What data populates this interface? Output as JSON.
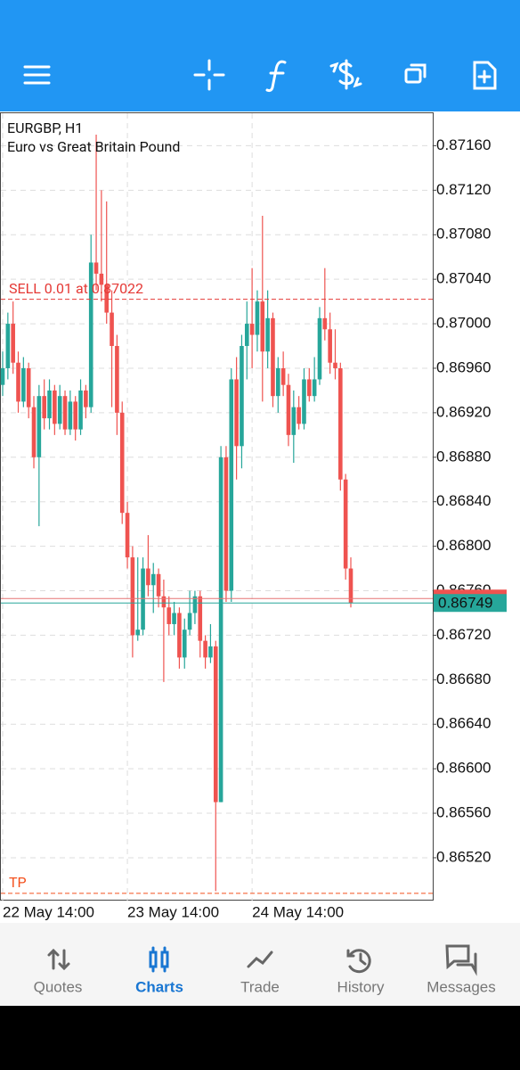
{
  "chart_data": {
    "type": "candlestick",
    "symbol": "EURGBP, H1",
    "description": "Euro vs Great Britain Pound",
    "categories": [
      "22 May 14:00",
      null,
      null,
      null,
      null,
      null,
      null,
      null,
      null,
      null,
      null,
      null,
      null,
      null,
      null,
      null,
      null,
      null,
      null,
      null,
      null,
      null,
      null,
      null,
      "23 May 14:00",
      null,
      null,
      null,
      null,
      null,
      null,
      null,
      null,
      null,
      null,
      null,
      null,
      null,
      null,
      null,
      null,
      null,
      null,
      null,
      null,
      null,
      null,
      null,
      "24 May 14:00",
      null,
      null,
      null,
      null,
      null,
      null,
      null,
      null,
      null,
      null,
      null,
      null,
      null,
      null,
      null,
      null,
      null,
      null,
      null
    ],
    "open": [
      0.86945,
      0.8696,
      0.87,
      0.86965,
      0.8693,
      0.8696,
      0.86925,
      0.8688,
      0.86935,
      0.86915,
      0.8694,
      0.8691,
      0.86935,
      0.86905,
      0.8693,
      0.86905,
      0.8694,
      0.86925,
      0.87055,
      0.87045,
      0.87035,
      0.8701,
      0.8698,
      0.8692,
      0.8683,
      0.8679,
      0.8672,
      0.86725,
      0.8678,
      0.86765,
      0.86775,
      0.86755,
      0.86745,
      0.8673,
      0.8674,
      0.867,
      0.86725,
      0.8674,
      0.86755,
      0.86715,
      0.867,
      0.8671,
      0.8657,
      0.8688,
      0.8676,
      0.8695,
      0.8689,
      0.8698,
      0.87,
      0.8699,
      0.8702,
      0.86975,
      0.87005,
      0.86935,
      0.8696,
      0.86945,
      0.869,
      0.86925,
      0.8691,
      0.8695,
      0.86935,
      0.8695,
      0.87005,
      0.86995,
      0.86965,
      0.8696,
      0.8686,
      0.8678
    ],
    "high": [
      0.86975,
      0.8701,
      0.8702,
      0.86975,
      0.8697,
      0.86965,
      0.86935,
      0.86945,
      0.8695,
      0.8695,
      0.86945,
      0.86945,
      0.8694,
      0.8694,
      0.86935,
      0.8695,
      0.86945,
      0.8708,
      0.8717,
      0.8712,
      0.8711,
      0.8703,
      0.8699,
      0.8693,
      0.8684,
      0.868,
      0.8679,
      0.8679,
      0.8681,
      0.86785,
      0.8678,
      0.8677,
      0.86755,
      0.8675,
      0.86745,
      0.86735,
      0.8676,
      0.8676,
      0.8676,
      0.8672,
      0.8673,
      0.86715,
      0.8689,
      0.8689,
      0.8696,
      0.8697,
      0.8699,
      0.8702,
      0.8705,
      0.8703,
      0.87097,
      0.8703,
      0.8701,
      0.8697,
      0.86975,
      0.86955,
      0.8694,
      0.86935,
      0.8696,
      0.8696,
      0.8697,
      0.87015,
      0.8705,
      0.8701,
      0.86995,
      0.86965,
      0.86865,
      0.8679
    ],
    "low": [
      0.86935,
      0.8695,
      0.86955,
      0.8692,
      0.86925,
      0.86915,
      0.8687,
      0.86818,
      0.86905,
      0.86905,
      0.869,
      0.86905,
      0.869,
      0.869,
      0.86895,
      0.869,
      0.86915,
      0.8692,
      0.8703,
      0.8702,
      0.87,
      0.86925,
      0.869,
      0.8682,
      0.8678,
      0.867,
      0.86715,
      0.8672,
      0.86755,
      0.8674,
      0.86745,
      0.86678,
      0.8672,
      0.8672,
      0.8669,
      0.8669,
      0.8672,
      0.8673,
      0.867,
      0.8669,
      0.86695,
      0.8649,
      0.8657,
      0.8675,
      0.8675,
      0.8686,
      0.8687,
      0.8695,
      0.8696,
      0.86975,
      0.8693,
      0.8696,
      0.86925,
      0.8692,
      0.86935,
      0.8689,
      0.86875,
      0.86905,
      0.86905,
      0.8693,
      0.8693,
      0.86945,
      0.86985,
      0.86955,
      0.8695,
      0.8685,
      0.8677,
      0.86745
    ],
    "close": [
      0.8696,
      0.87,
      0.86965,
      0.8693,
      0.8696,
      0.86925,
      0.8688,
      0.86935,
      0.86915,
      0.8694,
      0.8691,
      0.86935,
      0.86905,
      0.8693,
      0.86905,
      0.8694,
      0.86925,
      0.87055,
      0.87045,
      0.87035,
      0.8701,
      0.8698,
      0.8692,
      0.8683,
      0.8679,
      0.8672,
      0.86725,
      0.8678,
      0.86765,
      0.86775,
      0.86755,
      0.86745,
      0.8673,
      0.8674,
      0.867,
      0.86725,
      0.8674,
      0.86755,
      0.86715,
      0.867,
      0.8671,
      0.8657,
      0.8688,
      0.8676,
      0.8695,
      0.8689,
      0.8698,
      0.87,
      0.8699,
      0.8702,
      0.86975,
      0.87005,
      0.86935,
      0.8696,
      0.86945,
      0.869,
      0.86925,
      0.8691,
      0.8695,
      0.86935,
      0.8695,
      0.87005,
      0.86995,
      0.86965,
      0.8696,
      0.8686,
      0.8678,
      0.86749
    ],
    "up_color": "#26a69a",
    "down_color": "#ef5350",
    "ylim": [
      0.864815,
      0.8719
    ],
    "yticks": [
      {
        "value": 0.8716,
        "label": "0.87160"
      },
      {
        "value": 0.8712,
        "label": "0.87120"
      },
      {
        "value": 0.8708,
        "label": "0.87080"
      },
      {
        "value": 0.8704,
        "label": "0.87040"
      },
      {
        "value": 0.87,
        "label": "0.87000"
      },
      {
        "value": 0.8696,
        "label": "0.86960"
      },
      {
        "value": 0.8692,
        "label": "0.86920"
      },
      {
        "value": 0.8688,
        "label": "0.86880"
      },
      {
        "value": 0.8684,
        "label": "0.86840"
      },
      {
        "value": 0.868,
        "label": "0.86800"
      },
      {
        "value": 0.8676,
        "label": "0.86760"
      },
      {
        "value": 0.8672,
        "label": "0.86720"
      },
      {
        "value": 0.8668,
        "label": "0.86680"
      },
      {
        "value": 0.8664,
        "label": "0.86640"
      },
      {
        "value": 0.866,
        "label": "0.86600"
      },
      {
        "value": 0.8656,
        "label": "0.86560"
      },
      {
        "value": 0.8652,
        "label": "0.86520"
      }
    ],
    "grid": true,
    "position_label": "SELL 0.01 at 0.87022",
    "position_price": 0.87022,
    "tp_label": "TP",
    "tp_price": 0.86488,
    "ask": 0.86753,
    "bid": 0.86749
  },
  "nav": {
    "items": [
      {
        "label": "Quotes",
        "active": false
      },
      {
        "label": "Charts",
        "active": true
      },
      {
        "label": "Trade",
        "active": false
      },
      {
        "label": "History",
        "active": false
      },
      {
        "label": "Messages",
        "active": false
      }
    ]
  }
}
